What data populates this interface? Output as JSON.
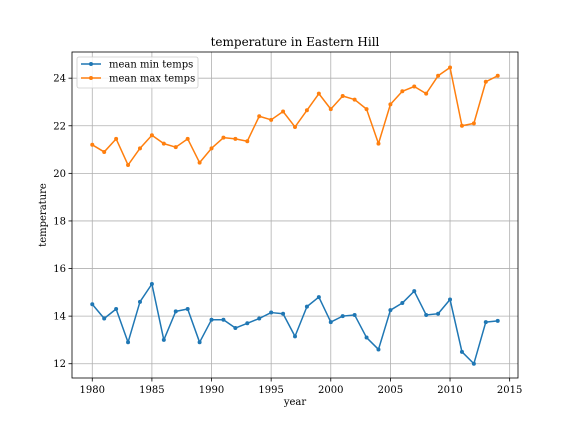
{
  "chart_data": {
    "type": "line",
    "title": "temperature in Eastern Hill",
    "xlabel": "year",
    "ylabel": "temperature",
    "xlim": [
      1978.3,
      2015.7
    ],
    "ylim": [
      11.4,
      25.1
    ],
    "xticks": [
      1980,
      1985,
      1990,
      1995,
      2000,
      2005,
      2010,
      2015
    ],
    "yticks": [
      12,
      14,
      16,
      18,
      20,
      22,
      24
    ],
    "grid": true,
    "legend_position": "upper-left",
    "x": [
      1980,
      1981,
      1982,
      1983,
      1984,
      1985,
      1986,
      1987,
      1988,
      1989,
      1990,
      1991,
      1992,
      1993,
      1994,
      1995,
      1996,
      1997,
      1998,
      1999,
      2000,
      2001,
      2002,
      2003,
      2004,
      2005,
      2006,
      2007,
      2008,
      2009,
      2010,
      2011,
      2012,
      2013,
      2014
    ],
    "series": [
      {
        "name": "mean min temps",
        "color": "#1f77b4",
        "values": [
          14.5,
          13.9,
          14.3,
          12.9,
          14.6,
          15.35,
          13.0,
          14.2,
          14.3,
          12.9,
          13.85,
          13.85,
          13.5,
          13.7,
          13.9,
          14.15,
          14.1,
          13.15,
          14.4,
          14.8,
          13.75,
          14.0,
          14.05,
          13.1,
          12.6,
          14.25,
          14.55,
          15.05,
          14.05,
          14.1,
          14.7,
          12.5,
          12.0,
          13.75,
          13.8
        ]
      },
      {
        "name": "mean max temps",
        "color": "#ff7f0e",
        "values": [
          21.2,
          20.9,
          21.45,
          20.35,
          21.05,
          21.6,
          21.25,
          21.1,
          21.45,
          20.45,
          21.05,
          21.5,
          21.45,
          21.35,
          22.4,
          22.25,
          22.6,
          21.95,
          22.65,
          23.35,
          22.7,
          23.25,
          23.1,
          22.7,
          21.25,
          22.9,
          23.45,
          23.65,
          23.35,
          24.1,
          24.45,
          22.0,
          22.1,
          23.85,
          24.1
        ]
      }
    ]
  }
}
